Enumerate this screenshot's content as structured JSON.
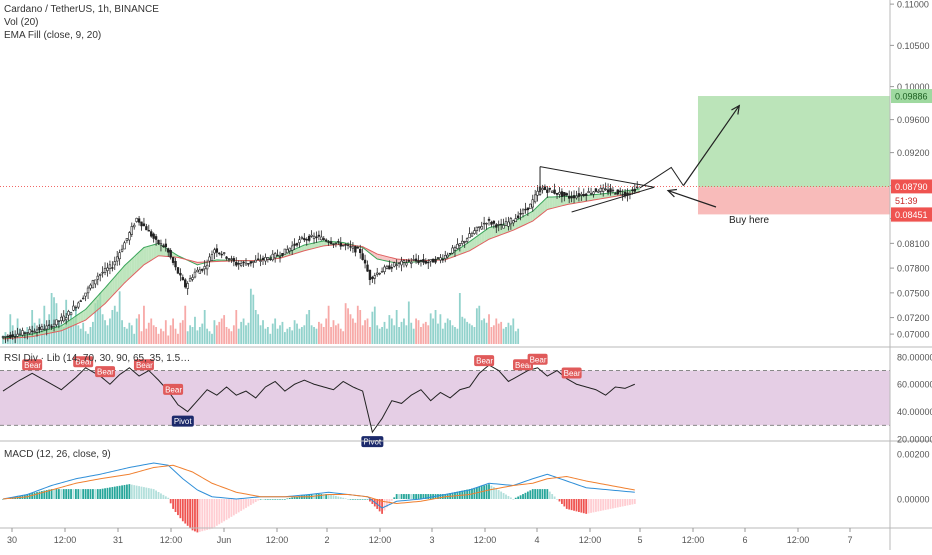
{
  "legend": {
    "symbol_title": "Cardano / TetherUS, 1h, BINANCE",
    "volume": "Vol (20)",
    "ema_fill": "EMA Fill (close, 9, 20)",
    "rsi": "RSI Div · Lib (14, 70, 30, 90, 65, 35, 1.5…",
    "macd": "MACD (12, 26, close, 9)"
  },
  "annotations": {
    "buy_here": "Buy here",
    "bear": "Bear",
    "pivot": "Pivot"
  },
  "price_tags": {
    "target": "0.09886",
    "current": "0.08790",
    "countdown": "51:39",
    "entry": "0.08782",
    "stop": "0.08451"
  },
  "colors": {
    "up": "#26a69a",
    "down": "#ef5350",
    "bear_label": "#e05a5a",
    "pivot_label": "#1c2a6b",
    "rsi_band": "#e1c6e1",
    "target_zone": "#b7e3b5",
    "stop_zone": "#f8b7b6",
    "macd_line": "#2f8fd8",
    "signal_line": "#f08030"
  },
  "chart_data": [
    {
      "type": "candlestick",
      "title": "Cardano / TetherUS, 1h, BINANCE",
      "x_ticks": [
        "30",
        "12:00",
        "31",
        "12:00",
        "Jun",
        "12:00",
        "2",
        "12:00",
        "3",
        "12:00",
        "4",
        "12:00",
        "5",
        "12:00",
        "6",
        "12:00",
        "7"
      ],
      "y_ticks": [
        "0.11000",
        "0.10500",
        "0.10000",
        "0.09600",
        "0.09200",
        "0.08800",
        "0.08400",
        "0.08100",
        "0.07800",
        "0.07500",
        "0.07200",
        "0.07000"
      ],
      "ylim": [
        0.0688,
        0.1105
      ],
      "price_path": [
        [
          0,
          0.0696
        ],
        [
          10,
          0.0702
        ],
        [
          20,
          0.0709
        ],
        [
          27,
          0.0722
        ],
        [
          33,
          0.0742
        ],
        [
          40,
          0.0771
        ],
        [
          46,
          0.0783
        ],
        [
          52,
          0.0816
        ],
        [
          56,
          0.084
        ],
        [
          60,
          0.0828
        ],
        [
          64,
          0.0812
        ],
        [
          68,
          0.0805
        ],
        [
          72,
          0.078
        ],
        [
          76,
          0.0758
        ],
        [
          80,
          0.0775
        ],
        [
          84,
          0.0781
        ],
        [
          88,
          0.0803
        ],
        [
          92,
          0.0796
        ],
        [
          97,
          0.0785
        ],
        [
          103,
          0.0787
        ],
        [
          110,
          0.0792
        ],
        [
          116,
          0.0798
        ],
        [
          124,
          0.0815
        ],
        [
          130,
          0.0818
        ],
        [
          136,
          0.0812
        ],
        [
          142,
          0.0807
        ],
        [
          148,
          0.08
        ],
        [
          152,
          0.0768
        ],
        [
          156,
          0.0776
        ],
        [
          162,
          0.0784
        ],
        [
          170,
          0.0789
        ],
        [
          176,
          0.0787
        ],
        [
          182,
          0.0793
        ],
        [
          188,
          0.0806
        ],
        [
          194,
          0.0822
        ],
        [
          200,
          0.0837
        ],
        [
          206,
          0.083
        ],
        [
          212,
          0.0841
        ],
        [
          218,
          0.0856
        ],
        [
          222,
          0.0877
        ],
        [
          228,
          0.0872
        ],
        [
          234,
          0.0866
        ],
        [
          240,
          0.087
        ],
        [
          246,
          0.0875
        ],
        [
          252,
          0.0873
        ],
        [
          258,
          0.087
        ],
        [
          262,
          0.0878
        ]
      ],
      "ema_fast_path": [
        [
          0,
          0.0695
        ],
        [
          12,
          0.07
        ],
        [
          24,
          0.071
        ],
        [
          34,
          0.073
        ],
        [
          42,
          0.0756
        ],
        [
          50,
          0.0783
        ],
        [
          58,
          0.0805
        ],
        [
          64,
          0.081
        ],
        [
          72,
          0.0795
        ],
        [
          80,
          0.0784
        ],
        [
          88,
          0.079
        ],
        [
          96,
          0.0789
        ],
        [
          104,
          0.0789
        ],
        [
          114,
          0.0795
        ],
        [
          124,
          0.0808
        ],
        [
          132,
          0.0813
        ],
        [
          140,
          0.0811
        ],
        [
          148,
          0.0805
        ],
        [
          154,
          0.0791
        ],
        [
          162,
          0.0786
        ],
        [
          172,
          0.0788
        ],
        [
          182,
          0.0792
        ],
        [
          192,
          0.0812
        ],
        [
          200,
          0.0829
        ],
        [
          210,
          0.0836
        ],
        [
          218,
          0.0849
        ],
        [
          224,
          0.0866
        ],
        [
          232,
          0.0867
        ],
        [
          240,
          0.0868
        ],
        [
          250,
          0.0871
        ],
        [
          262,
          0.0876
        ]
      ],
      "ema_slow_path": [
        [
          0,
          0.0694
        ],
        [
          12,
          0.0697
        ],
        [
          24,
          0.0704
        ],
        [
          34,
          0.0717
        ],
        [
          42,
          0.0737
        ],
        [
          50,
          0.0762
        ],
        [
          58,
          0.0784
        ],
        [
          64,
          0.0795
        ],
        [
          72,
          0.0793
        ],
        [
          80,
          0.0787
        ],
        [
          88,
          0.0788
        ],
        [
          96,
          0.0789
        ],
        [
          104,
          0.0789
        ],
        [
          114,
          0.0792
        ],
        [
          124,
          0.0801
        ],
        [
          132,
          0.0807
        ],
        [
          140,
          0.0809
        ],
        [
          148,
          0.0806
        ],
        [
          154,
          0.0797
        ],
        [
          162,
          0.0791
        ],
        [
          172,
          0.0789
        ],
        [
          182,
          0.079
        ],
        [
          192,
          0.0801
        ],
        [
          200,
          0.0815
        ],
        [
          210,
          0.0826
        ],
        [
          218,
          0.0837
        ],
        [
          224,
          0.0851
        ],
        [
          232,
          0.0857
        ],
        [
          240,
          0.0861
        ],
        [
          250,
          0.0866
        ],
        [
          262,
          0.0872
        ]
      ],
      "triangle_pattern": {
        "apex_x": 268,
        "upper_start": [
          221,
          0.0903
        ],
        "lower_start": [
          234,
          0.0848
        ],
        "apex_price": 0.0878
      },
      "projection_path": [
        [
          262,
          0.0877
        ],
        [
          275,
          0.0902
        ],
        [
          280,
          0.088
        ],
        [
          303,
          0.0977
        ]
      ],
      "position": {
        "entry": 0.08782,
        "target": 0.09886,
        "stop": 0.08451,
        "start_x": 286,
        "end_x": 368
      },
      "current_price": 0.0879
    },
    {
      "type": "bar",
      "title": "Vol (20)",
      "note": "Volume histogram sharing the price x-axis, relative heights",
      "values": [
        10,
        14,
        8,
        35,
        22,
        12,
        30,
        18,
        9,
        15,
        20,
        12,
        40,
        25,
        18,
        30,
        14,
        45,
        22,
        35,
        60,
        55,
        48,
        28,
        24,
        20,
        52,
        28,
        38,
        30,
        42,
        22,
        18,
        25,
        15,
        12,
        20,
        26,
        48,
        52,
        60,
        35,
        28,
        22,
        30,
        40,
        45,
        38,
        62,
        28,
        20,
        18,
        25,
        22,
        12,
        30,
        35,
        15,
        45,
        18,
        25,
        30,
        22,
        20,
        12,
        18,
        15,
        28,
        10,
        22,
        30,
        18,
        12,
        25,
        28,
        45,
        15,
        22,
        20,
        32,
        16,
        20,
        24,
        40,
        18,
        15,
        12,
        28,
        22,
        26,
        30,
        34,
        20,
        18,
        15,
        22,
        40,
        18,
        26,
        30,
        22,
        25,
        65,
        58,
        40,
        35,
        22,
        28,
        18,
        20,
        12,
        24,
        30,
        18,
        22,
        26,
        14,
        18,
        20,
        16,
        28,
        24,
        18,
        20,
        22,
        35,
        40,
        22,
        20,
        18,
        26,
        24,
        20,
        30,
        45,
        20,
        28,
        22,
        24,
        18,
        15,
        48,
        42,
        35,
        30,
        25,
        45,
        40,
        22,
        28,
        30,
        20,
        38,
        44,
        22,
        18,
        20,
        26,
        18,
        34,
        30,
        22,
        40,
        20,
        26,
        30,
        22,
        50,
        25,
        18,
        30,
        28,
        20,
        24,
        26,
        22,
        36,
        30,
        40,
        24,
        35,
        18,
        25,
        30,
        28,
        22,
        20,
        18,
        60,
        32,
        30,
        26,
        24,
        22,
        20,
        42,
        45,
        28,
        30,
        25,
        35,
        20,
        22,
        30,
        24,
        26,
        18,
        20,
        25,
        22,
        30,
        15,
        18
      ]
    },
    {
      "type": "line",
      "title": "RSI Div · Lib (14, 70, 30, 90, 65, 35, 1.5…",
      "y_ticks": [
        "80.00000",
        "60.00000",
        "40.00000",
        "20.00000"
      ],
      "ylim": [
        20,
        85
      ],
      "bands": [
        30,
        70
      ],
      "path": [
        [
          0,
          55
        ],
        [
          6,
          62
        ],
        [
          12,
          68
        ],
        [
          18,
          62
        ],
        [
          24,
          56
        ],
        [
          30,
          65
        ],
        [
          34,
          72
        ],
        [
          40,
          66
        ],
        [
          44,
          60
        ],
        [
          48,
          67
        ],
        [
          52,
          72
        ],
        [
          56,
          66
        ],
        [
          60,
          70
        ],
        [
          64,
          63
        ],
        [
          68,
          55
        ],
        [
          72,
          45
        ],
        [
          76,
          40
        ],
        [
          80,
          48
        ],
        [
          84,
          56
        ],
        [
          88,
          52
        ],
        [
          92,
          58
        ],
        [
          96,
          52
        ],
        [
          100,
          55
        ],
        [
          104,
          50
        ],
        [
          108,
          58
        ],
        [
          112,
          62
        ],
        [
          116,
          55
        ],
        [
          120,
          60
        ],
        [
          124,
          63
        ],
        [
          128,
          60
        ],
        [
          132,
          58
        ],
        [
          136,
          56
        ],
        [
          140,
          62
        ],
        [
          144,
          58
        ],
        [
          148,
          55
        ],
        [
          152,
          25
        ],
        [
          156,
          35
        ],
        [
          160,
          48
        ],
        [
          164,
          46
        ],
        [
          168,
          52
        ],
        [
          172,
          56
        ],
        [
          176,
          48
        ],
        [
          180,
          54
        ],
        [
          184,
          50
        ],
        [
          188,
          56
        ],
        [
          192,
          58
        ],
        [
          196,
          68
        ],
        [
          200,
          74
        ],
        [
          204,
          70
        ],
        [
          208,
          62
        ],
        [
          212,
          66
        ],
        [
          216,
          70
        ],
        [
          220,
          72
        ],
        [
          224,
          66
        ],
        [
          228,
          70
        ],
        [
          232,
          64
        ],
        [
          236,
          60
        ],
        [
          240,
          58
        ],
        [
          244,
          56
        ],
        [
          248,
          52
        ],
        [
          252,
          58
        ],
        [
          256,
          57
        ],
        [
          260,
          60
        ]
      ],
      "bear_labels_x": [
        12,
        33,
        42,
        58,
        70,
        198,
        214,
        220,
        234
      ],
      "pivot_labels": [
        {
          "x": 74,
          "value": 40
        },
        {
          "x": 152,
          "value": 25
        }
      ]
    },
    {
      "type": "line",
      "title": "MACD (12, 26, close, 9)",
      "y_ticks": [
        "0.00200",
        "0.00000"
      ],
      "ylim": [
        -0.0012,
        0.0024
      ],
      "macd_path": [
        [
          0,
          0
        ],
        [
          10,
          0.0002
        ],
        [
          20,
          0.0006
        ],
        [
          30,
          0.0009
        ],
        [
          40,
          0.0011
        ],
        [
          52,
          0.0014
        ],
        [
          62,
          0.0016
        ],
        [
          68,
          0.0015
        ],
        [
          74,
          0.0009
        ],
        [
          80,
          0.0004
        ],
        [
          86,
          0.0001
        ],
        [
          96,
          0
        ],
        [
          106,
          0.0001
        ],
        [
          116,
          0.0001
        ],
        [
          126,
          0.0002
        ],
        [
          134,
          0.0003
        ],
        [
          142,
          0.0002
        ],
        [
          150,
          0.0001
        ],
        [
          156,
          -0.0004
        ],
        [
          162,
          -0.0001
        ],
        [
          172,
          0
        ],
        [
          182,
          0.0002
        ],
        [
          192,
          0.0004
        ],
        [
          200,
          0.0007
        ],
        [
          210,
          0.0006
        ],
        [
          218,
          0.0009
        ],
        [
          224,
          0.0011
        ],
        [
          232,
          0.0008
        ],
        [
          240,
          0.0005
        ],
        [
          250,
          0.0004
        ],
        [
          260,
          0.0003
        ]
      ],
      "signal_path": [
        [
          0,
          0
        ],
        [
          10,
          0.0001
        ],
        [
          20,
          0.0004
        ],
        [
          30,
          0.0007
        ],
        [
          40,
          0.0009
        ],
        [
          52,
          0.0011
        ],
        [
          62,
          0.0014
        ],
        [
          70,
          0.0015
        ],
        [
          78,
          0.0012
        ],
        [
          86,
          0.0007
        ],
        [
          96,
          0.0003
        ],
        [
          106,
          0.0001
        ],
        [
          116,
          0.0001
        ],
        [
          126,
          0.0001
        ],
        [
          134,
          0.0002
        ],
        [
          142,
          0.0002
        ],
        [
          150,
          0.0001
        ],
        [
          156,
          -0.0001
        ],
        [
          162,
          -0.0002
        ],
        [
          172,
          -0.0001
        ],
        [
          182,
          0.0001
        ],
        [
          192,
          0.0002
        ],
        [
          200,
          0.0004
        ],
        [
          210,
          0.0006
        ],
        [
          218,
          0.0007
        ],
        [
          224,
          0.0009
        ],
        [
          232,
          0.001
        ],
        [
          240,
          0.0008
        ],
        [
          250,
          0.0006
        ],
        [
          260,
          0.0004
        ]
      ]
    }
  ]
}
